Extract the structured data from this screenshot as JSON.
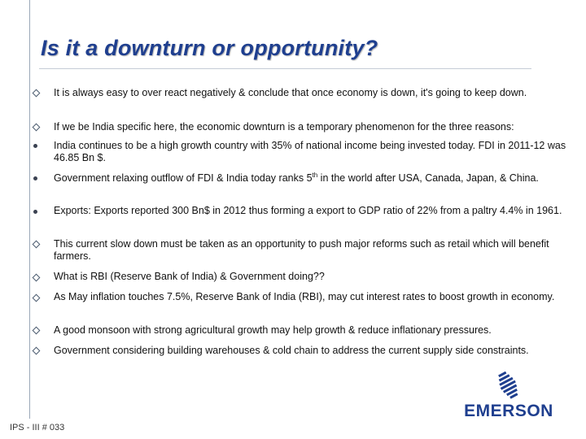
{
  "title": "Is it a downturn or opportunity?",
  "bullets": [
    {
      "marker": "diamond",
      "text": "It is always easy to over react  negatively & conclude that once economy is down, it's going to keep down."
    },
    {
      "marker": "diamond",
      "text": "If we be India specific here, the economic downturn is a temporary phenomenon for the three reasons:"
    },
    {
      "marker": "dot",
      "text": "India continues to be a high growth country with 35% of national income being invested today. FDI in 2011-12 was 46.85 Bn $."
    },
    {
      "marker": "dot",
      "text_before_sup": "Government relaxing outflow of FDI & India today ranks 5",
      "sup": "th",
      "text_after_sup": " in the world after USA, Canada, Japan, & China."
    },
    {
      "marker": "dot",
      "text": "Exports:  Exports reported 300 Bn$ in 2012 thus forming a export to GDP ratio of 22% from a paltry 4.4% in 1961."
    },
    {
      "marker": "diamond",
      "text": "This current slow down must be taken as an opportunity to push major reforms such as retail which will benefit farmers."
    },
    {
      "marker": "diamond",
      "text": "What is RBI (Reserve Bank of India) & Government doing??"
    },
    {
      "marker": "diamond",
      "text": "As May inflation touches 7.5%, Reserve Bank of India (RBI), may cut interest rates to boost growth in economy."
    },
    {
      "marker": "diamond",
      "text": "A good monsoon with strong agricultural growth may help growth & reduce inflationary pressures."
    },
    {
      "marker": "diamond",
      "text": "Government considering building warehouses & cold chain to address the current supply side constraints."
    }
  ],
  "footer": "IPS - III # 033",
  "logo": {
    "text": "EMERSON",
    "icon": "emerson-logo-icon",
    "color": "#1f3f8f"
  }
}
